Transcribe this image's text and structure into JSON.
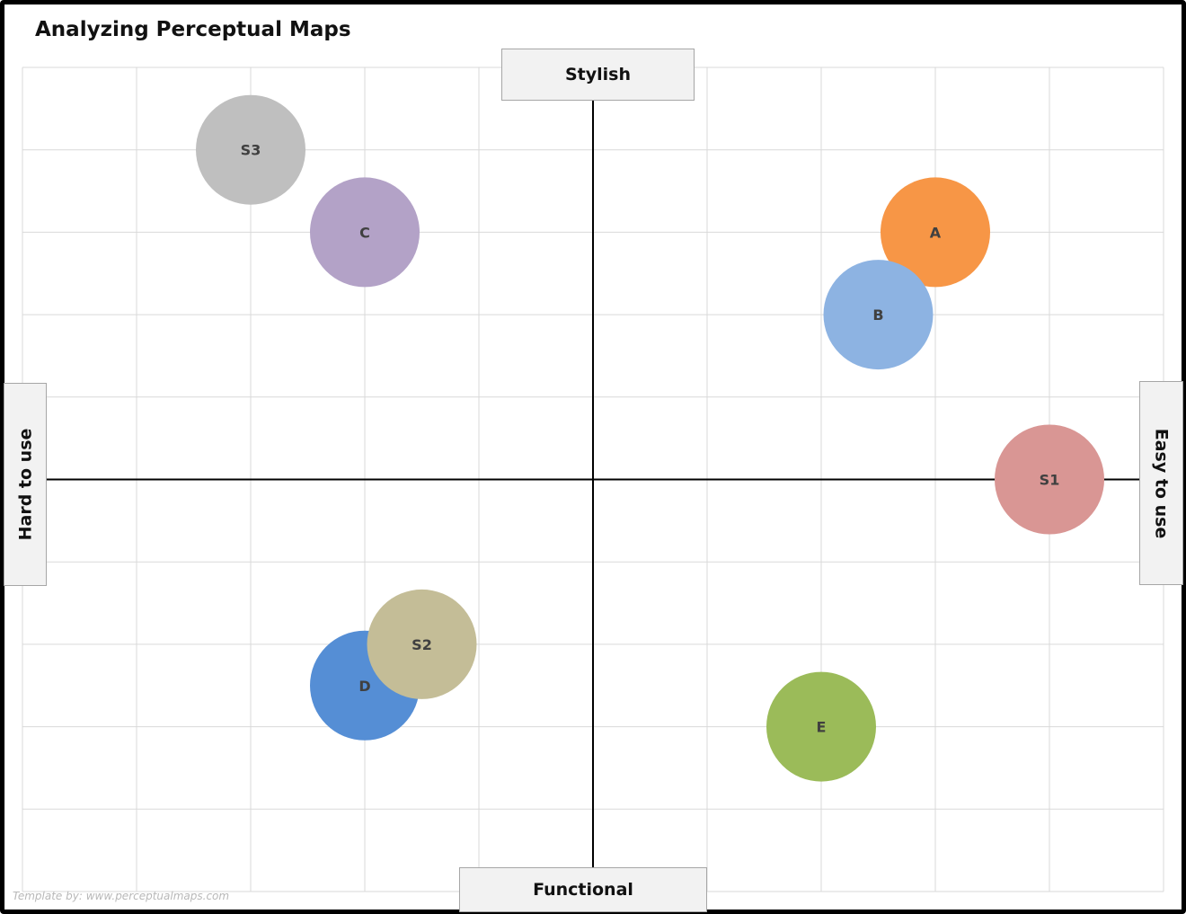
{
  "title": "Analyzing Perceptual Maps",
  "watermark": "Template by: www.perceptualmaps.com",
  "chart_data": {
    "type": "scatter",
    "title": "Analyzing Perceptual Maps",
    "axes": {
      "top": "Stylish",
      "bottom": "Functional",
      "left": "Hard to use",
      "right": "Easy to use"
    },
    "xlim": [
      -5,
      5
    ],
    "ylim": [
      -5,
      5
    ],
    "grid": true,
    "points": [
      {
        "label": "S3",
        "x": -3,
        "y": 4,
        "color": "#bfbfbf"
      },
      {
        "label": "C",
        "x": -2,
        "y": 3,
        "color": "#b3a2c7"
      },
      {
        "label": "A",
        "x": 3,
        "y": 3,
        "color": "#f79646"
      },
      {
        "label": "B",
        "x": 2.5,
        "y": 2,
        "color": "#8db3e2"
      },
      {
        "label": "S1",
        "x": 4,
        "y": 0,
        "color": "#d99694"
      },
      {
        "label": "D",
        "x": -2,
        "y": -2.5,
        "color": "#558ed5"
      },
      {
        "label": "S2",
        "x": -1.5,
        "y": -2,
        "color": "#c4bd97"
      },
      {
        "label": "E",
        "x": 2,
        "y": -3,
        "color": "#9bbb59"
      }
    ]
  }
}
